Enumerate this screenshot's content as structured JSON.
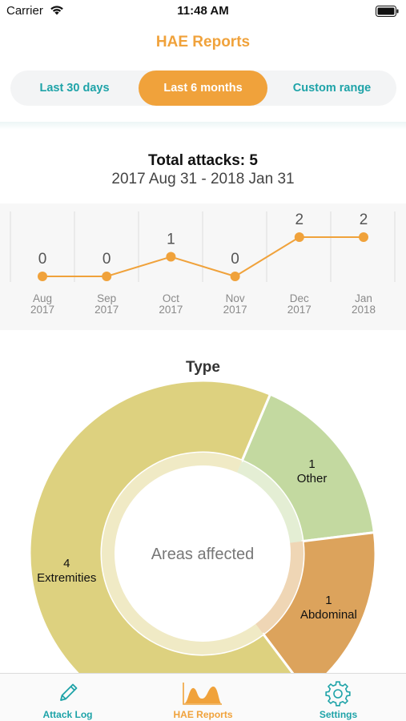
{
  "status_bar": {
    "carrier": "Carrier",
    "time": "11:48 AM"
  },
  "nav": {
    "title": "HAE Reports"
  },
  "range_selector": {
    "options": [
      "Last 30 days",
      "Last 6 months",
      "Custom range"
    ],
    "selected_index": 1
  },
  "summary": {
    "total_attacks": "Total attacks: 5",
    "date_range": "2017 Aug 31 - 2018 Jan 31"
  },
  "colors": {
    "accent": "#f0a23b",
    "teal": "#1ea3a8",
    "extremities": "#ddd17f",
    "other": "#c3d9a0",
    "abdominal": "#dca35c"
  },
  "chart_data": [
    {
      "type": "line",
      "categories": [
        [
          "Aug",
          "2017"
        ],
        [
          "Sep",
          "2017"
        ],
        [
          "Oct",
          "2017"
        ],
        [
          "Nov",
          "2017"
        ],
        [
          "Dec",
          "2017"
        ],
        [
          "Jan",
          "2018"
        ]
      ],
      "values": [
        0,
        0,
        1,
        0,
        2,
        2
      ],
      "grid": true
    },
    {
      "type": "pie",
      "title": "Type",
      "center_label": "Areas affected",
      "slices": [
        {
          "label": "Other",
          "value": 1
        },
        {
          "label": "Abdominal",
          "value": 1
        },
        {
          "label": "Extremities",
          "value": 4
        }
      ]
    }
  ],
  "tab_bar": {
    "items": [
      {
        "label": "Attack Log",
        "icon": "pencil-icon"
      },
      {
        "label": "HAE Reports",
        "icon": "area-chart-icon"
      },
      {
        "label": "Settings",
        "icon": "gear-icon"
      }
    ],
    "selected_index": 1
  }
}
